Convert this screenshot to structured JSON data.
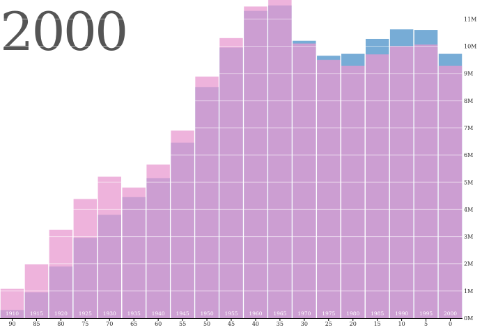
{
  "chart_data": {
    "type": "bar",
    "title": "2000",
    "xlabel": "",
    "ylabel": "",
    "ylim": [
      0,
      11700000
    ],
    "yticks": [
      0,
      1000000,
      2000000,
      3000000,
      4000000,
      5000000,
      6000000,
      7000000,
      8000000,
      9000000,
      10000000,
      11000000
    ],
    "ytick_labels": [
      "0M",
      "1M",
      "2M",
      "3M",
      "4M",
      "5M",
      "6M",
      "7M",
      "8M",
      "9M",
      "10M",
      "11M"
    ],
    "categories": [
      "90",
      "85",
      "80",
      "75",
      "70",
      "65",
      "60",
      "55",
      "50",
      "45",
      "40",
      "35",
      "30",
      "25",
      "20",
      "15",
      "10",
      "5",
      "0"
    ],
    "birth_years": [
      "1910",
      "1915",
      "1920",
      "1925",
      "1930",
      "1935",
      "1940",
      "1945",
      "1950",
      "1955",
      "1960",
      "1965",
      "1970",
      "1975",
      "1980",
      "1985",
      "1990",
      "1995",
      "2000"
    ],
    "series": [
      {
        "color": "#4a90c8",
        "values": [
          300000,
          950000,
          1900000,
          2950000,
          3800000,
          4450000,
          5150000,
          6450000,
          8500000,
          9950000,
          11300000,
          11500000,
          10200000,
          9650000,
          9720000,
          10270000,
          10620000,
          10600000,
          9720000
        ]
      },
      {
        "color": "#e89ad0",
        "values": [
          1080000,
          1980000,
          3250000,
          4380000,
          5200000,
          4800000,
          5650000,
          6900000,
          8880000,
          10300000,
          11460000,
          11720000,
          10100000,
          9500000,
          9280000,
          9700000,
          10000000,
          10060000,
          9280000
        ]
      }
    ],
    "grid": true,
    "legend": "none"
  }
}
